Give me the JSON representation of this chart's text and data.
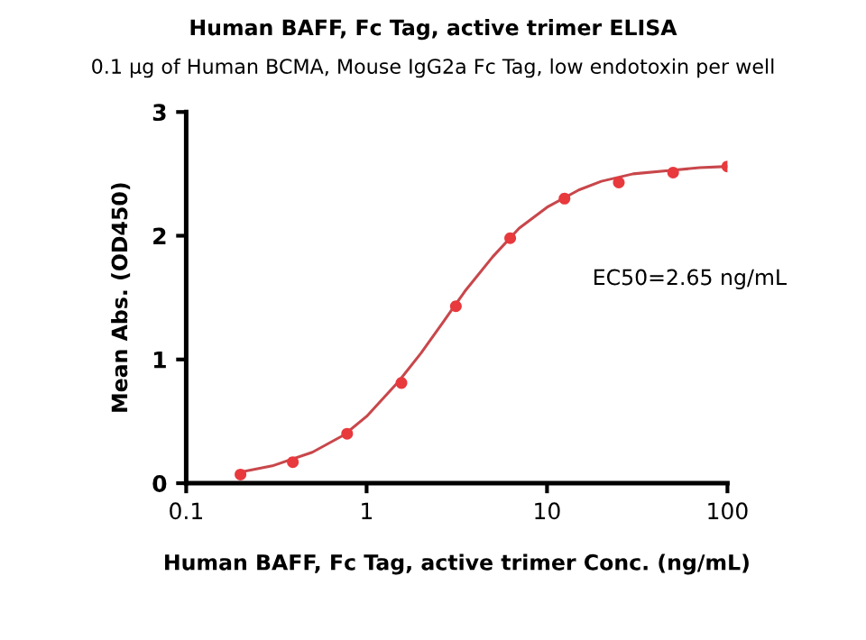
{
  "chart_data": {
    "type": "line",
    "title": "Human BAFF, Fc Tag, active trimer ELISA",
    "subtitle": "0.1 µg of Human BCMA, Mouse IgG2a Fc Tag, low endotoxin per well",
    "xlabel": "Human BAFF, Fc Tag, active trimer Conc. (ng/mL)",
    "ylabel": "Mean Abs. (OD450)",
    "annotations": [
      "EC50=2.65 ng/mL"
    ],
    "log": "x",
    "xlim": [
      0.1,
      100
    ],
    "xticks": [
      0.1,
      1,
      10,
      100
    ],
    "ylim": [
      0,
      3
    ],
    "yticks": [
      0,
      1,
      2,
      3
    ],
    "grid": false,
    "legend": false,
    "series": [
      {
        "color": "#c8474b",
        "marker": "none",
        "line_style": "solid",
        "x": [
          0.2,
          0.3,
          0.5,
          0.75,
          1,
          1.5,
          2,
          2.65,
          3.5,
          5,
          7,
          10,
          15,
          20,
          30,
          50,
          70,
          100
        ],
        "values": [
          0.09,
          0.14,
          0.25,
          0.39,
          0.54,
          0.82,
          1.05,
          1.3,
          1.55,
          1.83,
          2.06,
          2.23,
          2.37,
          2.44,
          2.5,
          2.53,
          2.55,
          2.56
        ]
      },
      {
        "type": "scatter",
        "color": "#e8393d",
        "marker": "circle",
        "x": [
          0.2,
          0.39,
          0.78,
          1.56,
          3.125,
          6.25,
          12.5,
          25,
          50,
          100
        ],
        "values": [
          0.07,
          0.17,
          0.4,
          0.81,
          1.43,
          1.98,
          2.3,
          2.43,
          2.51,
          2.56
        ]
      }
    ]
  }
}
